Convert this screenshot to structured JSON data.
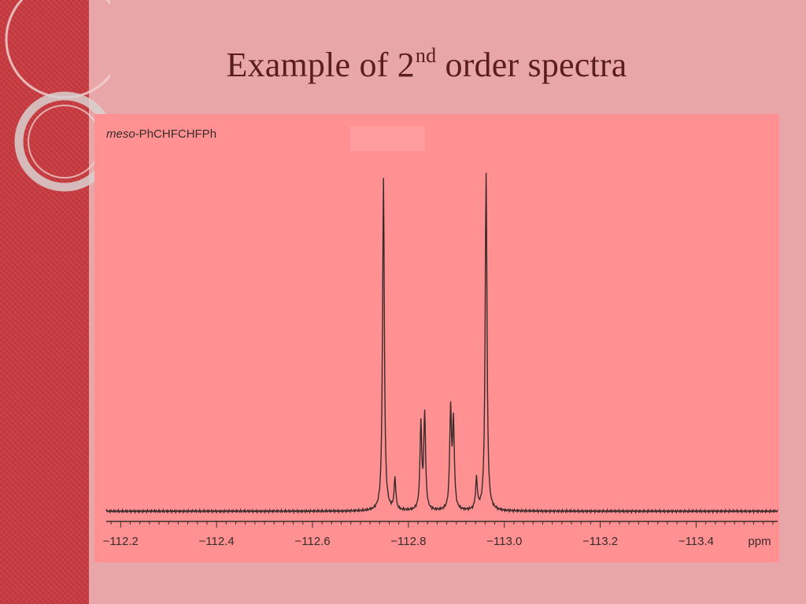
{
  "slide": {
    "title_main": "Example of 2",
    "title_sup": "nd",
    "title_rest": " order spectra"
  },
  "chart_data": {
    "type": "line",
    "title": "meso-PhCHFCHFPh",
    "title_prefix_italic": "meso",
    "title_suffix": "-PhCHFCHFPh",
    "xlabel": "ppm",
    "ylabel": "",
    "x_reversed": true,
    "xlim": [
      -112.17,
      -113.57
    ],
    "x_ticks": [
      -112.2,
      -112.4,
      -112.6,
      -112.8,
      -113.0,
      -113.2,
      -113.4
    ],
    "x_tick_labels": [
      "−112.2",
      "−112.4",
      "−112.6",
      "−112.8",
      "−113.0",
      "−113.2",
      "−113.4"
    ],
    "ylim": [
      0,
      1.0
    ],
    "grid": false,
    "peaks": [
      {
        "x": -112.748,
        "intensity": 0.97
      },
      {
        "x": -112.772,
        "intensity": 0.09
      },
      {
        "x": -112.826,
        "intensity": 0.25
      },
      {
        "x": -112.834,
        "intensity": 0.28
      },
      {
        "x": -112.888,
        "intensity": 0.29
      },
      {
        "x": -112.894,
        "intensity": 0.25
      },
      {
        "x": -112.942,
        "intensity": 0.09
      },
      {
        "x": -112.962,
        "intensity": 0.99
      }
    ],
    "baseline": 0.0,
    "colors": {
      "line": "#3a2a2a",
      "panel": "#ff9193",
      "background": "#e8a6a8",
      "band": "#c83a3f"
    }
  }
}
